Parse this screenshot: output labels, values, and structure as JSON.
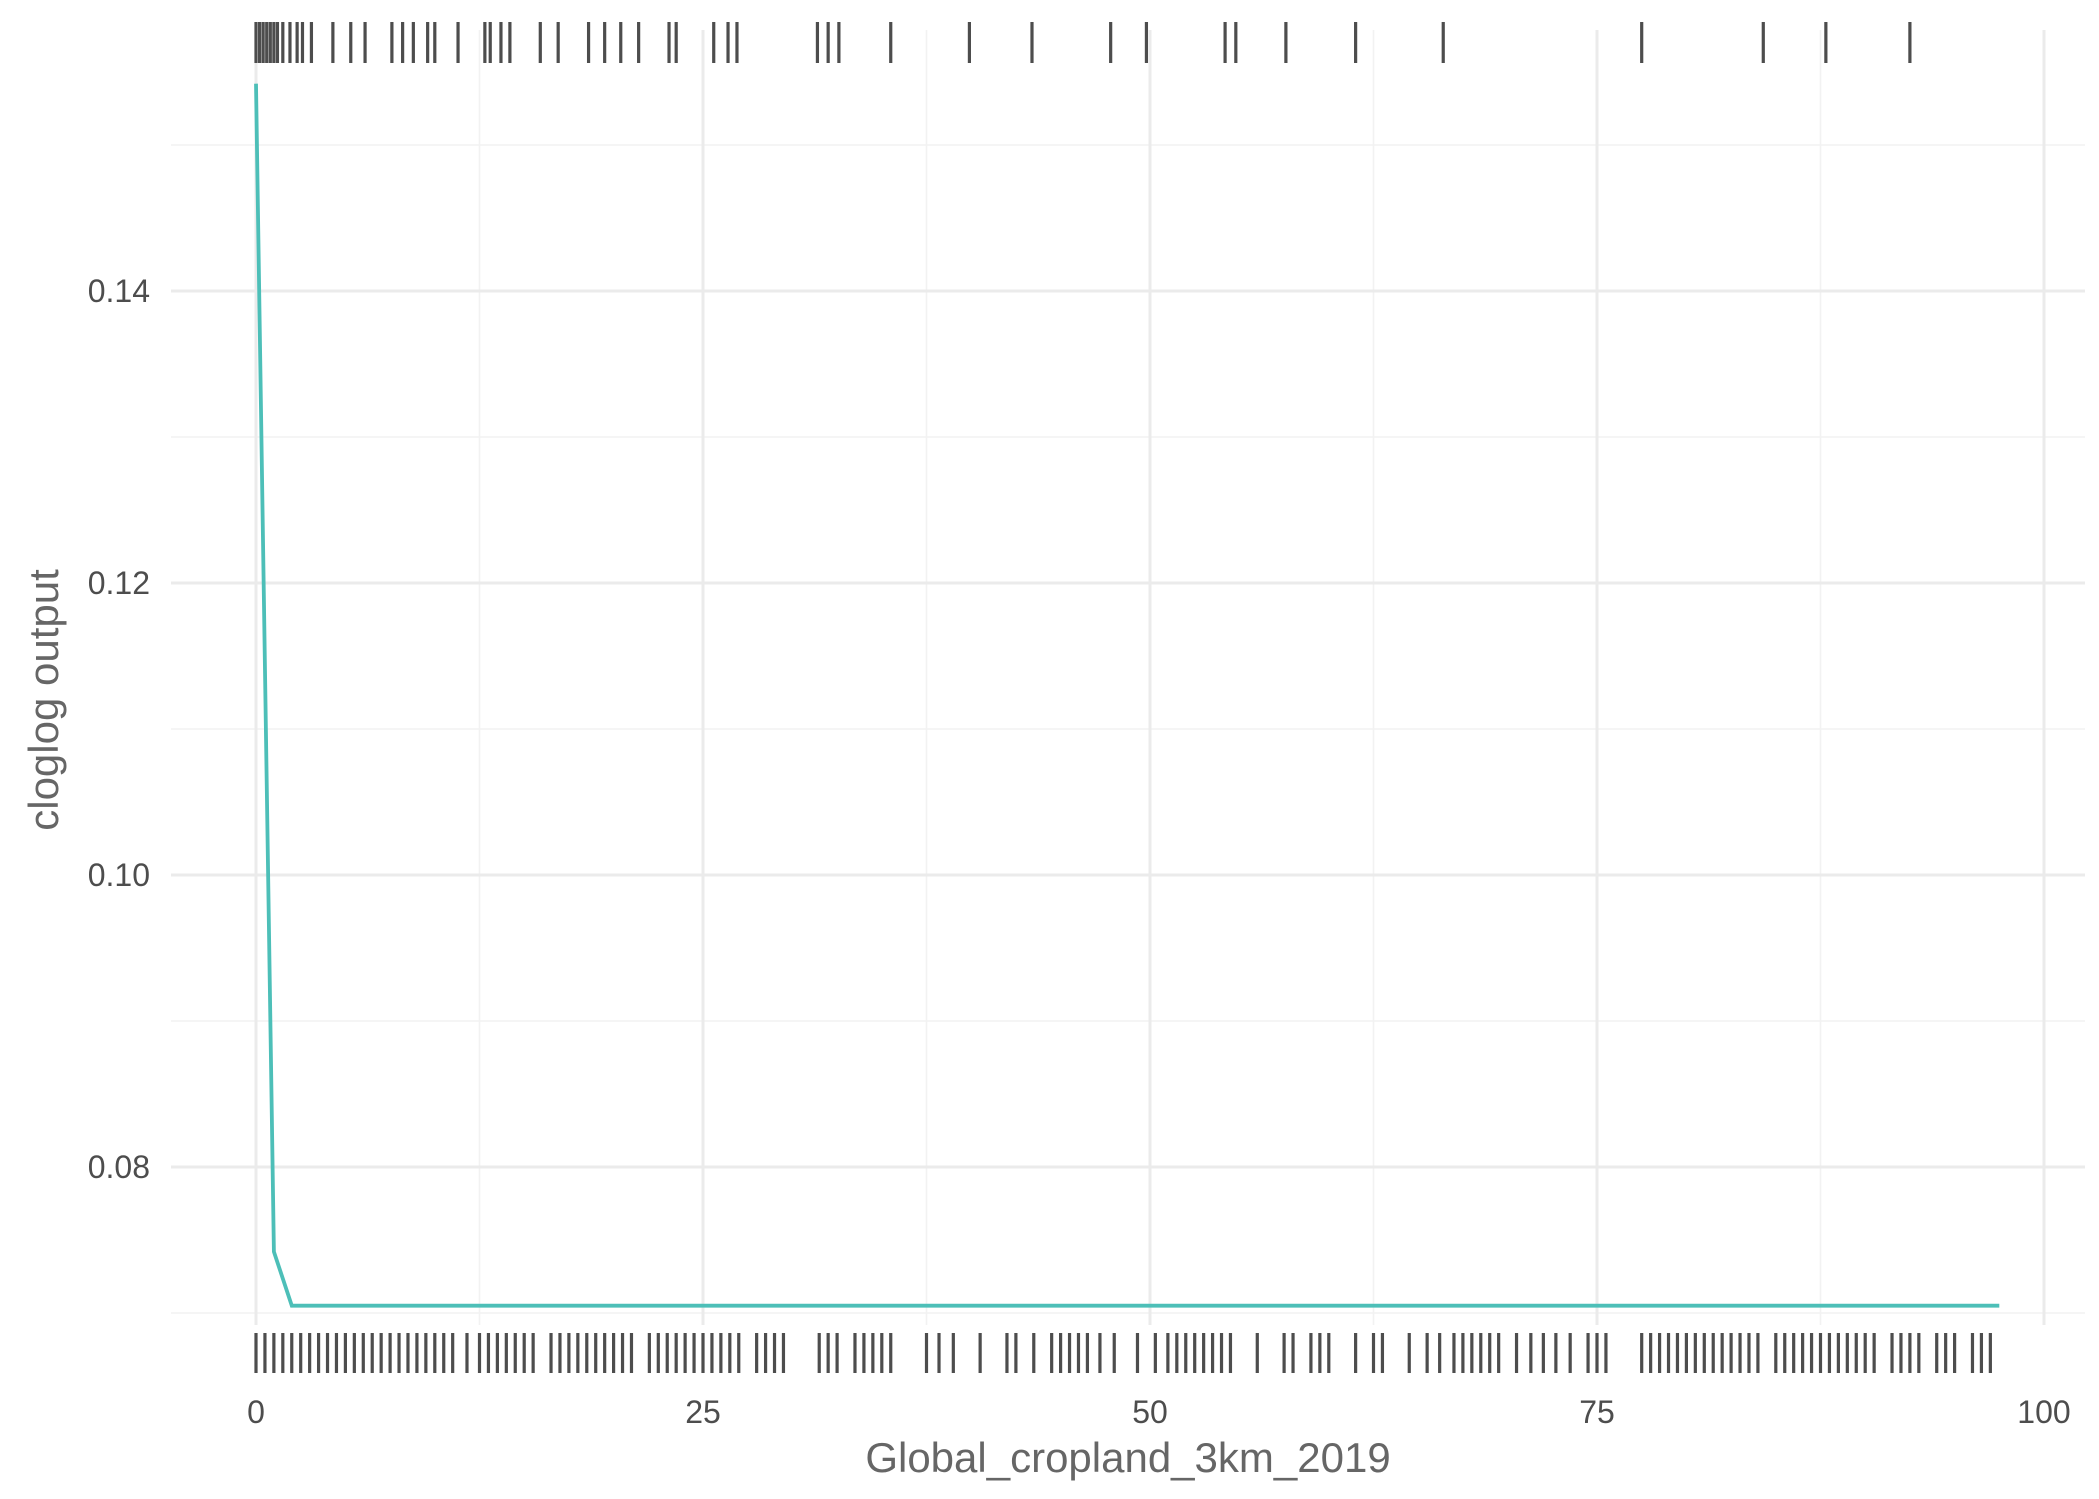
{
  "chart_data": {
    "type": "line",
    "title": "",
    "xlabel": "Global_cropland_3km_2019",
    "ylabel": "cloglog output",
    "xlim": [
      -4.8,
      100
    ],
    "ylim": [
      0.0688,
      0.1542
    ],
    "x_ticks": [
      0,
      25,
      50,
      75,
      100
    ],
    "x_tick_labels": [
      "0",
      "25",
      "50",
      "75",
      "100"
    ],
    "y_ticks": [
      0.08,
      0.1,
      0.12,
      0.14
    ],
    "y_tick_labels": [
      "0.08",
      "0.10",
      "0.12",
      "0.14"
    ],
    "grid": true,
    "line_color": "#4dbfb8",
    "series": [
      {
        "x": [
          0,
          1,
          2,
          10,
          25,
          50,
          75,
          97.5
        ],
        "y": [
          0.1542,
          0.0742,
          0.0705,
          0.0705,
          0.0705,
          0.0705,
          0.0705,
          0.0705
        ]
      }
    ],
    "rug_top_x": [
      0,
      0.2,
      0.4,
      0.6,
      0.8,
      1,
      1.2,
      1.5,
      1.9,
      2.3,
      2.6,
      3.1,
      4.3,
      5.3,
      6.1,
      7.6,
      8.2,
      8.8,
      9.6,
      10,
      11.3,
      12.8,
      13.1,
      13.7,
      14.2,
      15.9,
      16.9,
      18.6,
      19.5,
      20.4,
      21.4,
      23.1,
      23.5,
      25.6,
      26.4,
      26.9,
      31.4,
      32,
      32.6,
      35.5,
      39.9,
      43.4,
      47.8,
      49.8,
      54.2,
      54.8,
      57.6,
      61.5,
      66.4,
      77.5,
      84.3,
      87.8,
      92.5
    ],
    "rug_bottom_x": [
      0,
      0.5,
      1,
      1.5,
      2,
      2.5,
      3,
      3.5,
      4,
      4.5,
      5,
      5.5,
      6,
      6.5,
      7,
      7.5,
      8,
      8.5,
      9,
      9.5,
      10,
      10.5,
      11,
      11.8,
      12.5,
      13,
      13.5,
      14,
      14.5,
      15,
      15.5,
      16.5,
      17,
      17.5,
      18,
      18.5,
      19,
      19.5,
      20,
      20.5,
      21,
      22,
      22.5,
      23,
      23.5,
      24,
      24.5,
      25,
      25.5,
      26,
      26.5,
      27,
      28,
      28.5,
      29,
      29.5,
      31.5,
      32,
      32.5,
      33.5,
      34,
      34.5,
      35,
      35.5,
      37.5,
      38.2,
      39,
      40.5,
      42,
      42.5,
      43.5,
      44.5,
      45,
      45.5,
      46,
      46.5,
      47.2,
      48,
      49.3,
      50.3,
      51,
      51.5,
      52,
      52.5,
      53,
      53.5,
      54,
      54.5,
      56,
      57.5,
      58,
      59,
      59.5,
      60,
      61.5,
      62.5,
      63,
      64.5,
      65.5,
      66.2,
      67,
      67.5,
      68,
      68.5,
      69,
      69.5,
      70.5,
      71.3,
      72,
      72.7,
      73.5,
      74.5,
      75,
      75.5,
      77.5,
      78,
      78.5,
      79,
      79.5,
      80,
      80.5,
      81,
      81.5,
      82,
      82.5,
      83,
      83.5,
      84,
      85,
      85.5,
      86,
      86.5,
      87,
      87.5,
      88,
      88.5,
      89,
      89.5,
      90,
      90.5,
      91.5,
      92,
      92.5,
      93,
      94,
      94.5,
      95,
      96,
      96.5,
      97
    ]
  }
}
